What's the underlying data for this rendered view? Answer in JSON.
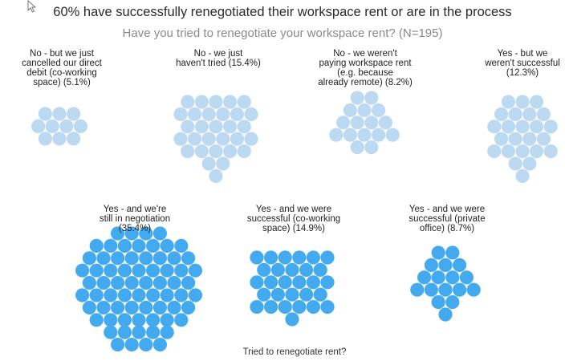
{
  "chart_data": {
    "type": "packed-bubble",
    "title": "60% have successfully renegotiated their workspace rent or are in the process",
    "subtitle": "Have you tried to renegotiate your workspace rent? (N=195)",
    "xlabel": "Tried to renegotiate rent?",
    "groups": [
      {
        "label": "No - but we just cancelled our direct debit (co-working space) (5.1%)",
        "percent": 5.1,
        "count": 10,
        "color": "#bcd9f2"
      },
      {
        "label": "No - we just haven't tried (15.4%)",
        "percent": 15.4,
        "count": 30,
        "color": "#bcd9f2"
      },
      {
        "label": "No - we weren't paying workspace rent (e.g. because already remote) (8.2%)",
        "percent": 8.2,
        "count": 16,
        "color": "#bcd9f2"
      },
      {
        "label": "Yes - but we weren't successful (12.3%)",
        "percent": 12.3,
        "count": 24,
        "color": "#bcd9f2"
      },
      {
        "label": "Yes - and we're still in negotiation (35.4%)",
        "percent": 35.4,
        "count": 69,
        "color": "#44aaf0"
      },
      {
        "label": "Yes - and we were successful (co-working space) (14.9%)",
        "percent": 14.9,
        "count": 29,
        "color": "#44aaf0"
      },
      {
        "label": "Yes - and we were successful (private office) (8.7%)",
        "percent": 8.7,
        "count": 17,
        "color": "#44aaf0"
      }
    ]
  },
  "labels": {
    "g0": [
      "No - but we just",
      "cancelled our direct",
      "debit (co-working",
      "space) (5.1%)"
    ],
    "g1": [
      "No - we just",
      "haven't tried (15.4%)"
    ],
    "g2": [
      "No - we weren't",
      "paying workspace rent",
      "(e.g. because",
      "already remote) (8.2%)"
    ],
    "g3": [
      "Yes - but we",
      "weren't successful",
      "(12.3%)"
    ],
    "g4": [
      "Yes - and we're",
      "still in negotiation",
      "(35.4%)"
    ],
    "g5": [
      "Yes - and we were",
      "successful (co-working",
      "space) (14.9%)"
    ],
    "g6": [
      "Yes - and we were",
      "successful (private",
      "office) (8.7%)"
    ]
  }
}
